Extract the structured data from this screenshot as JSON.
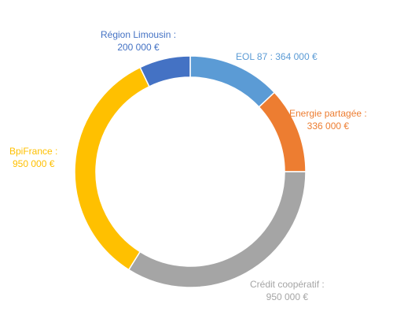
{
  "chart_data": {
    "type": "pie",
    "variant": "donut",
    "slices": [
      {
        "name": "EOL 87",
        "value": 364000,
        "label": "EOL 87 : 364 000 €",
        "color": "#5b9bd5"
      },
      {
        "name": "Energie partagée",
        "value": 336000,
        "label_line1": "Energie partagée :",
        "label_line2": "336 000 €",
        "color": "#ed7d31"
      },
      {
        "name": "Crédit coopératif",
        "value": 950000,
        "label_line1": "Crédit coopératif :",
        "label_line2": "950 000 €",
        "color": "#a5a5a5"
      },
      {
        "name": "BpiFrance",
        "value": 950000,
        "label_line1": "BpiFrance :",
        "label_line2": "950 000 €",
        "color": "#ffc000"
      },
      {
        "name": "Région Limousin",
        "value": 200000,
        "label_line1": "Région Limousin :",
        "label_line2": "200 000 €",
        "color": "#4472c4"
      }
    ]
  }
}
